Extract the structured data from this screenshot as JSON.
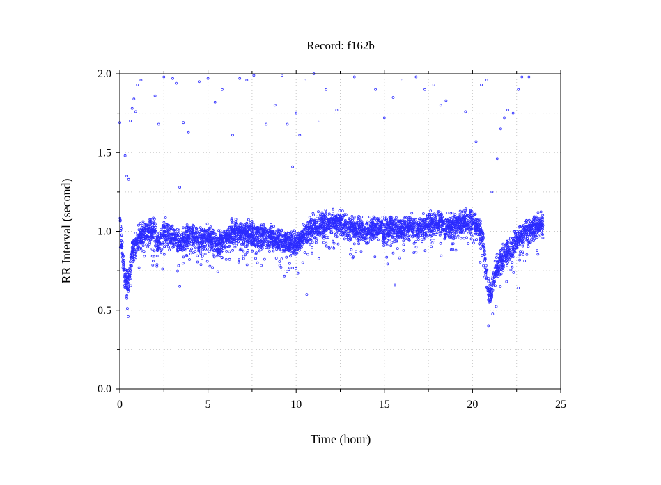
{
  "chart_data": {
    "type": "scatter",
    "title": "Record:  f162b",
    "xlabel": "Time (hour)",
    "ylabel": "RR Interval (second)",
    "xlim": [
      0,
      25
    ],
    "ylim": [
      0,
      2
    ],
    "x_ticks": [
      0,
      5,
      10,
      15,
      20,
      25
    ],
    "x_tick_labels": [
      "0",
      "5",
      "10",
      "15",
      "20",
      "25"
    ],
    "y_ticks": [
      0,
      0.5,
      1,
      1.5,
      2
    ],
    "y_tick_labels": [
      "0.0",
      "0.5",
      "1.0",
      "1.5",
      "2.0"
    ],
    "grid": true,
    "marker": "open-circle",
    "color": "#2b2bff",
    "profile": {
      "x": [
        0,
        0.1,
        0.3,
        0.5,
        0.7,
        1.0,
        1.5,
        2.0,
        2.2,
        2.5,
        3.0,
        3.5,
        4.0,
        4.5,
        5.0,
        5.5,
        6.0,
        6.5,
        7.0,
        7.5,
        8.0,
        8.5,
        9.0,
        9.5,
        10.0,
        10.5,
        11.0,
        11.5,
        12.0,
        12.5,
        13.0,
        13.5,
        14.0,
        14.5,
        15.0,
        15.5,
        16.0,
        16.5,
        17.0,
        17.5,
        18.0,
        18.5,
        19.0,
        19.5,
        20.0,
        20.3,
        20.6,
        20.8,
        21.0,
        21.3,
        21.6,
        22.0,
        22.5,
        23.0,
        23.5,
        24.0
      ],
      "y": [
        1.05,
        0.92,
        0.7,
        0.66,
        0.88,
        0.95,
        1.0,
        1.01,
        0.9,
        1.0,
        0.96,
        0.93,
        0.98,
        0.94,
        0.97,
        0.9,
        0.95,
        1.0,
        0.98,
        0.99,
        0.97,
        0.96,
        0.94,
        0.93,
        0.92,
        0.98,
        1.02,
        1.04,
        1.06,
        1.05,
        1.03,
        1.02,
        1.0,
        1.01,
        1.0,
        1.02,
        1.01,
        1.03,
        1.02,
        1.04,
        1.05,
        1.03,
        1.03,
        1.05,
        1.06,
        1.02,
        0.95,
        0.7,
        0.58,
        0.74,
        0.82,
        0.86,
        0.93,
        1.0,
        1.02,
        1.05
      ]
    },
    "band_spread": 0.07,
    "outliers": [
      {
        "x": 0.0,
        "y": 1.69
      },
      {
        "x": 0.3,
        "y": 1.48
      },
      {
        "x": 0.4,
        "y": 1.35
      },
      {
        "x": 0.5,
        "y": 1.33
      },
      {
        "x": 0.6,
        "y": 1.7
      },
      {
        "x": 0.7,
        "y": 1.78
      },
      {
        "x": 0.8,
        "y": 1.84
      },
      {
        "x": 0.9,
        "y": 1.76
      },
      {
        "x": 1.0,
        "y": 1.93
      },
      {
        "x": 1.2,
        "y": 1.96
      },
      {
        "x": 2.0,
        "y": 1.86
      },
      {
        "x": 2.2,
        "y": 1.68
      },
      {
        "x": 2.5,
        "y": 1.98
      },
      {
        "x": 3.0,
        "y": 1.97
      },
      {
        "x": 3.2,
        "y": 1.94
      },
      {
        "x": 3.4,
        "y": 1.28
      },
      {
        "x": 3.6,
        "y": 1.69
      },
      {
        "x": 3.9,
        "y": 1.63
      },
      {
        "x": 4.5,
        "y": 1.95
      },
      {
        "x": 5.0,
        "y": 1.97
      },
      {
        "x": 5.4,
        "y": 1.82
      },
      {
        "x": 5.8,
        "y": 1.9
      },
      {
        "x": 6.4,
        "y": 1.61
      },
      {
        "x": 6.8,
        "y": 1.97
      },
      {
        "x": 7.2,
        "y": 1.96
      },
      {
        "x": 7.6,
        "y": 1.99
      },
      {
        "x": 8.3,
        "y": 1.68
      },
      {
        "x": 8.8,
        "y": 1.8
      },
      {
        "x": 9.2,
        "y": 1.99
      },
      {
        "x": 9.5,
        "y": 1.68
      },
      {
        "x": 9.8,
        "y": 1.41
      },
      {
        "x": 10.0,
        "y": 1.75
      },
      {
        "x": 10.2,
        "y": 1.61
      },
      {
        "x": 10.5,
        "y": 1.96
      },
      {
        "x": 11.0,
        "y": 2.0
      },
      {
        "x": 11.3,
        "y": 1.7
      },
      {
        "x": 11.7,
        "y": 1.9
      },
      {
        "x": 12.3,
        "y": 1.77
      },
      {
        "x": 13.3,
        "y": 1.98
      },
      {
        "x": 14.5,
        "y": 1.9
      },
      {
        "x": 15.0,
        "y": 1.72
      },
      {
        "x": 15.5,
        "y": 1.85
      },
      {
        "x": 16.0,
        "y": 1.96
      },
      {
        "x": 16.8,
        "y": 1.98
      },
      {
        "x": 17.3,
        "y": 1.9
      },
      {
        "x": 17.8,
        "y": 1.93
      },
      {
        "x": 18.2,
        "y": 1.8
      },
      {
        "x": 18.5,
        "y": 1.83
      },
      {
        "x": 19.6,
        "y": 1.76
      },
      {
        "x": 20.2,
        "y": 1.57
      },
      {
        "x": 20.5,
        "y": 1.93
      },
      {
        "x": 20.8,
        "y": 1.96
      },
      {
        "x": 21.1,
        "y": 1.25
      },
      {
        "x": 21.4,
        "y": 1.46
      },
      {
        "x": 21.6,
        "y": 1.65
      },
      {
        "x": 21.8,
        "y": 1.72
      },
      {
        "x": 22.0,
        "y": 1.77
      },
      {
        "x": 22.3,
        "y": 1.75
      },
      {
        "x": 22.6,
        "y": 1.9
      },
      {
        "x": 22.8,
        "y": 1.98
      },
      {
        "x": 23.2,
        "y": 1.98
      },
      {
        "x": 3.4,
        "y": 0.65
      },
      {
        "x": 10.6,
        "y": 0.6
      },
      {
        "x": 15.6,
        "y": 0.66
      },
      {
        "x": 20.9,
        "y": 0.4
      },
      {
        "x": 22.6,
        "y": 0.64
      }
    ]
  }
}
